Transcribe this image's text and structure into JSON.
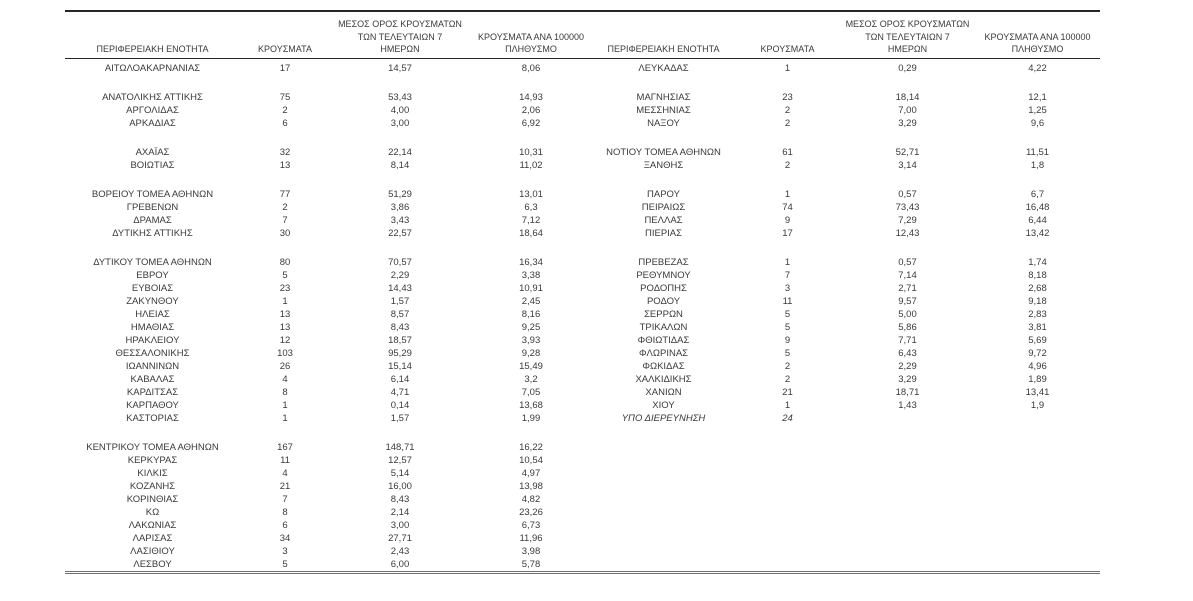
{
  "colors": {
    "background": "#ffffff",
    "text": "#3a3a3a",
    "top_rule": "#262626",
    "header_rule": "#262626",
    "bottom_double_rule": "#6e6e6e"
  },
  "table": {
    "headers": {
      "region": "ΠΕΡΙΦΕΡΕΙΑΚΗ ΕΝΟΤΗΤΑ",
      "cases": "ΚΡΟΥΣΜΑΤΑ",
      "avg7_line1": "ΜΕΣΟΣ ΟΡΟΣ ΚΡΟΥΣΜΑΤΩΝ",
      "avg7_line2": "ΤΩΝ ΤΕΛΕΥΤΑΙΩΝ 7",
      "avg7_line3": "ΗΜΕΡΩΝ",
      "per100k_line1": "ΚΡΟΥΣΜΑΤΑ ΑΝΑ 100000",
      "per100k_line2": "ΠΛΗΘΥΣΜΟ"
    },
    "rows": [
      {
        "cells": [
          "ΑΙΤΩΛΟΑΚΑΡΝΑΝΙΑΣ",
          "17",
          "14,57",
          "8,06",
          "ΛΕΥΚΑΔΑΣ",
          "1",
          "0,29",
          "4,22"
        ]
      },
      {
        "spacer": true
      },
      {
        "cells": [
          "ΑΝΑΤΟΛΙΚΗΣ ΑΤΤΙΚΗΣ",
          "75",
          "53,43",
          "14,93",
          "ΜΑΓΝΗΣΙΑΣ",
          "23",
          "18,14",
          "12,1"
        ]
      },
      {
        "cells": [
          "ΑΡΓΟΛΙΔΑΣ",
          "2",
          "4,00",
          "2,06",
          "ΜΕΣΣΗΝΙΑΣ",
          "2",
          "7,00",
          "1,25"
        ]
      },
      {
        "cells": [
          "ΑΡΚΑΔΙΑΣ",
          "6",
          "3,00",
          "6,92",
          "ΝΑΞΟΥ",
          "2",
          "3,29",
          "9,6"
        ]
      },
      {
        "spacer": true
      },
      {
        "cells": [
          "ΑΧΑΪΑΣ",
          "32",
          "22,14",
          "10,31",
          "ΝΟΤΙΟΥ ΤΟΜΕΑ ΑΘΗΝΩΝ",
          "61",
          "52,71",
          "11,51"
        ]
      },
      {
        "cells": [
          "ΒΟΙΩΤΙΑΣ",
          "13",
          "8,14",
          "11,02",
          "ΞΑΝΘΗΣ",
          "2",
          "3,14",
          "1,8"
        ]
      },
      {
        "spacer": true
      },
      {
        "cells": [
          "ΒΟΡΕΙΟΥ ΤΟΜΕΑ ΑΘΗΝΩΝ",
          "77",
          "51,29",
          "13,01",
          "ΠΑΡΟΥ",
          "1",
          "0,57",
          "6,7"
        ]
      },
      {
        "cells": [
          "ΓΡΕΒΕΝΩΝ",
          "2",
          "3,86",
          "6,3",
          "ΠΕΙΡΑΙΩΣ",
          "74",
          "73,43",
          "16,48"
        ]
      },
      {
        "cells": [
          "ΔΡΑΜΑΣ",
          "7",
          "3,43",
          "7,12",
          "ΠΕΛΛΑΣ",
          "9",
          "7,29",
          "6,44"
        ]
      },
      {
        "cells": [
          "ΔΥΤΙΚΗΣ ΑΤΤΙΚΗΣ",
          "30",
          "22,57",
          "18,64",
          "ΠΙΕΡΙΑΣ",
          "17",
          "12,43",
          "13,42"
        ]
      },
      {
        "spacer": true
      },
      {
        "cells": [
          "ΔΥΤΙΚΟΥ ΤΟΜΕΑ ΑΘΗΝΩΝ",
          "80",
          "70,57",
          "16,34",
          "ΠΡΕΒΕΖΑΣ",
          "1",
          "0,57",
          "1,74"
        ]
      },
      {
        "cells": [
          "ΕΒΡΟΥ",
          "5",
          "2,29",
          "3,38",
          "ΡΕΘΥΜΝΟΥ",
          "7",
          "7,14",
          "8,18"
        ]
      },
      {
        "cells": [
          "ΕΥΒΟΙΑΣ",
          "23",
          "14,43",
          "10,91",
          "ΡΟΔΟΠΗΣ",
          "3",
          "2,71",
          "2,68"
        ]
      },
      {
        "cells": [
          "ΖΑΚΥΝΘΟΥ",
          "1",
          "1,57",
          "2,45",
          "ΡΟΔΟΥ",
          "11",
          "9,57",
          "9,18"
        ]
      },
      {
        "cells": [
          "ΗΛΕΙΑΣ",
          "13",
          "8,57",
          "8,16",
          "ΣΕΡΡΩΝ",
          "5",
          "5,00",
          "2,83"
        ]
      },
      {
        "cells": [
          "ΗΜΑΘΙΑΣ",
          "13",
          "8,43",
          "9,25",
          "ΤΡΙΚΑΛΩΝ",
          "5",
          "5,86",
          "3,81"
        ]
      },
      {
        "cells": [
          "ΗΡΑΚΛΕΙΟΥ",
          "12",
          "18,57",
          "3,93",
          "ΦΘΙΩΤΙΔΑΣ",
          "9",
          "7,71",
          "5,69"
        ]
      },
      {
        "cells": [
          "ΘΕΣΣΑΛΟΝΙΚΗΣ",
          "103",
          "95,29",
          "9,28",
          "ΦΛΩΡΙΝΑΣ",
          "5",
          "6,43",
          "9,72"
        ]
      },
      {
        "cells": [
          "ΙΩΑΝΝΙΝΩΝ",
          "26",
          "15,14",
          "15,49",
          "ΦΩΚΙΔΑΣ",
          "2",
          "2,29",
          "4,96"
        ]
      },
      {
        "cells": [
          "ΚΑΒΑΛΑΣ",
          "4",
          "6,14",
          "3,2",
          "ΧΑΛΚΙΔΙΚΗΣ",
          "2",
          "3,29",
          "1,89"
        ]
      },
      {
        "cells": [
          "ΚΑΡΔΙΤΣΑΣ",
          "8",
          "4,71",
          "7,05",
          "ΧΑΝΙΩΝ",
          "21",
          "18,71",
          "13,41"
        ]
      },
      {
        "cells": [
          "ΚΑΡΠΑΘΟΥ",
          "1",
          "0,14",
          "13,68",
          "ΧΙΟΥ",
          "1",
          "1,43",
          "1,9"
        ]
      },
      {
        "cells": [
          "ΚΑΣΤΟΡΙΑΣ",
          "1",
          "1,57",
          "1,99",
          "ΥΠΟ ΔΙΕΡΕΥΝΗΣΗ",
          "24",
          "",
          ""
        ],
        "note": true
      },
      {
        "spacer": true
      },
      {
        "cells": [
          "ΚΕΝΤΡΙΚΟΥ ΤΟΜΕΑ ΑΘΗΝΩΝ",
          "167",
          "148,71",
          "16,22",
          "",
          "",
          "",
          ""
        ]
      },
      {
        "cells": [
          "ΚΕΡΚΥΡΑΣ",
          "11",
          "12,57",
          "10,54",
          "",
          "",
          "",
          ""
        ]
      },
      {
        "cells": [
          "ΚΙΛΚΙΣ",
          "4",
          "5,14",
          "4,97",
          "",
          "",
          "",
          ""
        ]
      },
      {
        "cells": [
          "ΚΟΖΑΝΗΣ",
          "21",
          "16,00",
          "13,98",
          "",
          "",
          "",
          ""
        ]
      },
      {
        "cells": [
          "ΚΟΡΙΝΘΙΑΣ",
          "7",
          "8,43",
          "4,82",
          "",
          "",
          "",
          ""
        ]
      },
      {
        "cells": [
          "ΚΩ",
          "8",
          "2,14",
          "23,26",
          "",
          "",
          "",
          ""
        ]
      },
      {
        "cells": [
          "ΛΑΚΩΝΙΑΣ",
          "6",
          "3,00",
          "6,73",
          "",
          "",
          "",
          ""
        ]
      },
      {
        "cells": [
          "ΛΑΡΙΣΑΣ",
          "34",
          "27,71",
          "11,96",
          "",
          "",
          "",
          ""
        ]
      },
      {
        "cells": [
          "ΛΑΣΙΘΙΟΥ",
          "3",
          "2,43",
          "3,98",
          "",
          "",
          "",
          ""
        ]
      },
      {
        "cells": [
          "ΛΕΣΒΟΥ",
          "5",
          "6,00",
          "5,78",
          "",
          "",
          "",
          ""
        ]
      }
    ]
  }
}
